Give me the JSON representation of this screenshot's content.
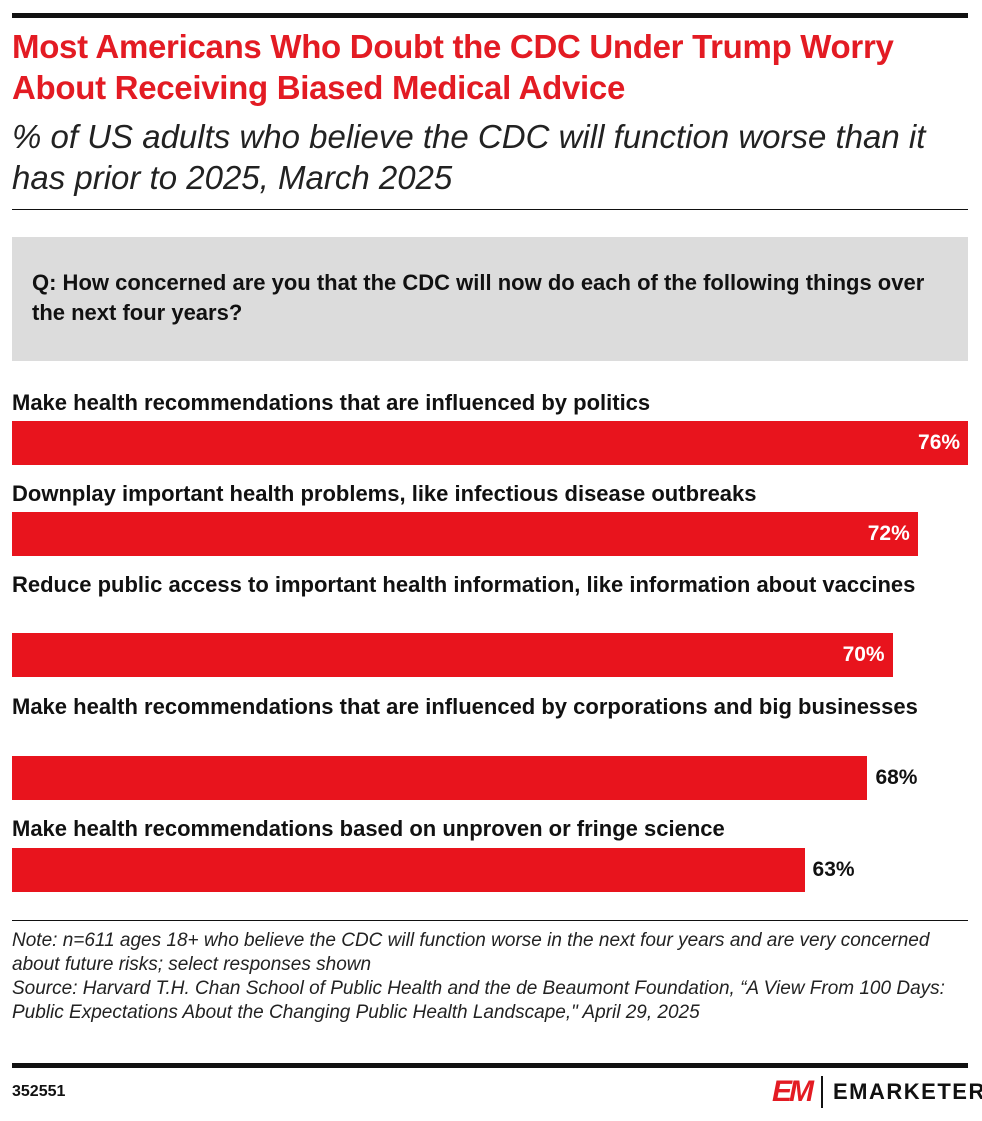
{
  "title": "Most Americans Who Doubt the CDC Under Trump Worry About Receiving Biased Medical Advice",
  "subtitle": "% of US adults who believe the CDC will function worse than it has prior to 2025, March 2025",
  "question": "Q: How concerned are you that the CDC will now do each of the following things over the next four years?",
  "chart_data": {
    "type": "bar",
    "orientation": "horizontal",
    "categories": [
      "Make health recommendations that are influenced by politics",
      "Downplay important health problems, like infectious disease outbreaks",
      "Reduce public access to important health information, like information about vaccines",
      "Make health recommendations that are influenced by corporations and big businesses",
      "Make health recommendations based on unproven or fringe science"
    ],
    "values": [
      76,
      72,
      70,
      68,
      63
    ],
    "value_labels": [
      "76%",
      "72%",
      "70%",
      "68%",
      "63%"
    ],
    "bar_color": "#e8141d"
  },
  "note": "Note: n=611 ages 18+ who believe the CDC will function worse in the next four years and are very concerned about future risks; select responses shown",
  "source": "Source: Harvard T.H. Chan School of Public Health and the de Beaumont Foundation, “A View From 100 Days: Public Expectations About the Changing Public Health Landscape,\" April 29, 2025",
  "chart_id": "352551",
  "logo": {
    "mark": "EM",
    "name": "EMARKETER"
  }
}
